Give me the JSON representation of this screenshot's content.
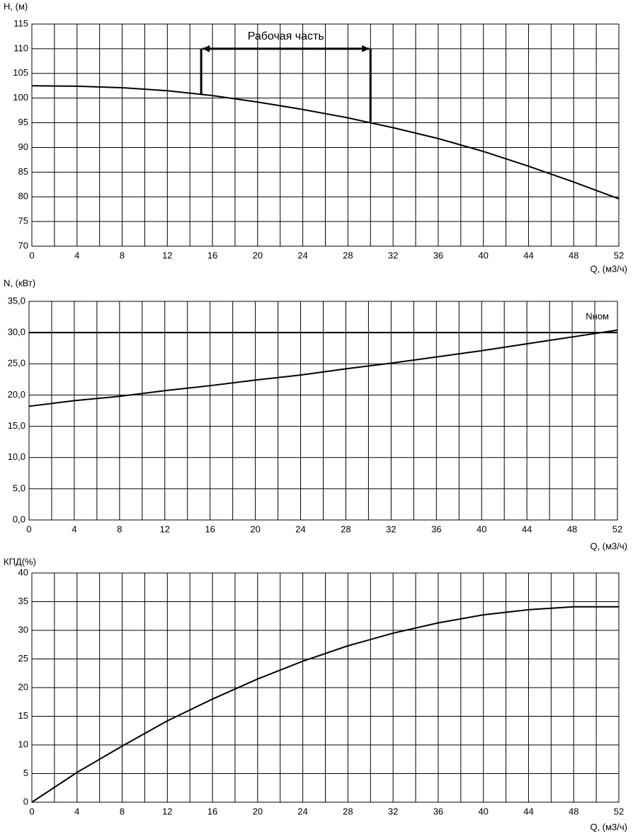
{
  "chart_data": [
    {
      "type": "line",
      "ylabel": "H, (м)",
      "xlabel": "Q, (м3/ч)",
      "x": [
        0,
        4,
        8,
        12,
        16,
        20,
        24,
        28,
        32,
        36,
        40,
        44,
        48,
        52
      ],
      "series": [
        {
          "color": "#000000",
          "values": [
            102.5,
            102.4,
            102.1,
            101.5,
            100.5,
            99.2,
            97.7,
            96,
            94,
            91.8,
            89.2,
            86.2,
            83,
            79.6
          ]
        }
      ],
      "xlim": [
        0,
        52
      ],
      "xticks": [
        0,
        4,
        8,
        12,
        16,
        20,
        24,
        28,
        32,
        36,
        40,
        44,
        48,
        52
      ],
      "minor_xticks": [
        2,
        6,
        10,
        14,
        18,
        22,
        26,
        30,
        34,
        38,
        42,
        46,
        50
      ],
      "ylim": [
        70,
        115
      ],
      "yticks": [
        70,
        75,
        80,
        85,
        90,
        95,
        100,
        105,
        110,
        115
      ],
      "grid": true,
      "annotation": {
        "text": "Рабочая часть",
        "x": [
          15,
          30
        ],
        "y": 110,
        "y_ends": [
          100.7,
          95.2
        ]
      }
    },
    {
      "type": "line",
      "ylabel": "N, (кВт)",
      "xlabel": "Q, (м3/ч)",
      "x": [
        0,
        4,
        8,
        12,
        16,
        20,
        24,
        28,
        32,
        36,
        40,
        44,
        48,
        52
      ],
      "series": [
        {
          "color": "#000000",
          "values": [
            18.2,
            19.1,
            19.8,
            20.7,
            21.5,
            22.4,
            23.2,
            24.2,
            25.1,
            26.1,
            27.1,
            28.2,
            29.3,
            30.4
          ]
        }
      ],
      "xlim": [
        0,
        52
      ],
      "xticks": [
        0,
        4,
        8,
        12,
        16,
        20,
        24,
        28,
        32,
        36,
        40,
        44,
        48,
        52
      ],
      "minor_xticks": [
        2,
        6,
        10,
        14,
        18,
        22,
        26,
        30,
        34,
        38,
        42,
        46,
        50
      ],
      "ylim": [
        0,
        35
      ],
      "yticks": [
        {
          "value": 0,
          "label": "0,0"
        },
        {
          "value": 5,
          "label": "5,0"
        },
        {
          "value": 10,
          "label": "10,0"
        },
        {
          "value": 15,
          "label": "15,0"
        },
        {
          "value": 20,
          "label": "20,0"
        },
        {
          "value": 25,
          "label": "25,0"
        },
        {
          "value": 30,
          "label": "30,0"
        },
        {
          "value": 35,
          "label": "35,0"
        }
      ],
      "grid": true,
      "hline": {
        "value": 30,
        "label": "Nном"
      }
    },
    {
      "type": "line",
      "ylabel": "КПД(%)",
      "xlabel": "Q, (м3/ч)",
      "x": [
        0,
        4,
        8,
        12,
        16,
        20,
        24,
        28,
        32,
        36,
        40,
        44,
        48,
        52
      ],
      "series": [
        {
          "color": "#000000",
          "values": [
            0,
            5.2,
            9.8,
            14.2,
            18,
            21.5,
            24.6,
            27.3,
            29.5,
            31.3,
            32.7,
            33.6,
            34.1,
            34.1
          ]
        }
      ],
      "xlim": [
        0,
        52
      ],
      "xticks": [
        0,
        4,
        8,
        12,
        16,
        20,
        24,
        28,
        32,
        36,
        40,
        44,
        48,
        52
      ],
      "minor_xticks": [
        2,
        6,
        10,
        14,
        18,
        22,
        26,
        30,
        34,
        38,
        42,
        46,
        50
      ],
      "ylim": [
        0,
        40
      ],
      "yticks": [
        0,
        5,
        10,
        15,
        20,
        25,
        30,
        35,
        40
      ],
      "grid": true
    }
  ]
}
